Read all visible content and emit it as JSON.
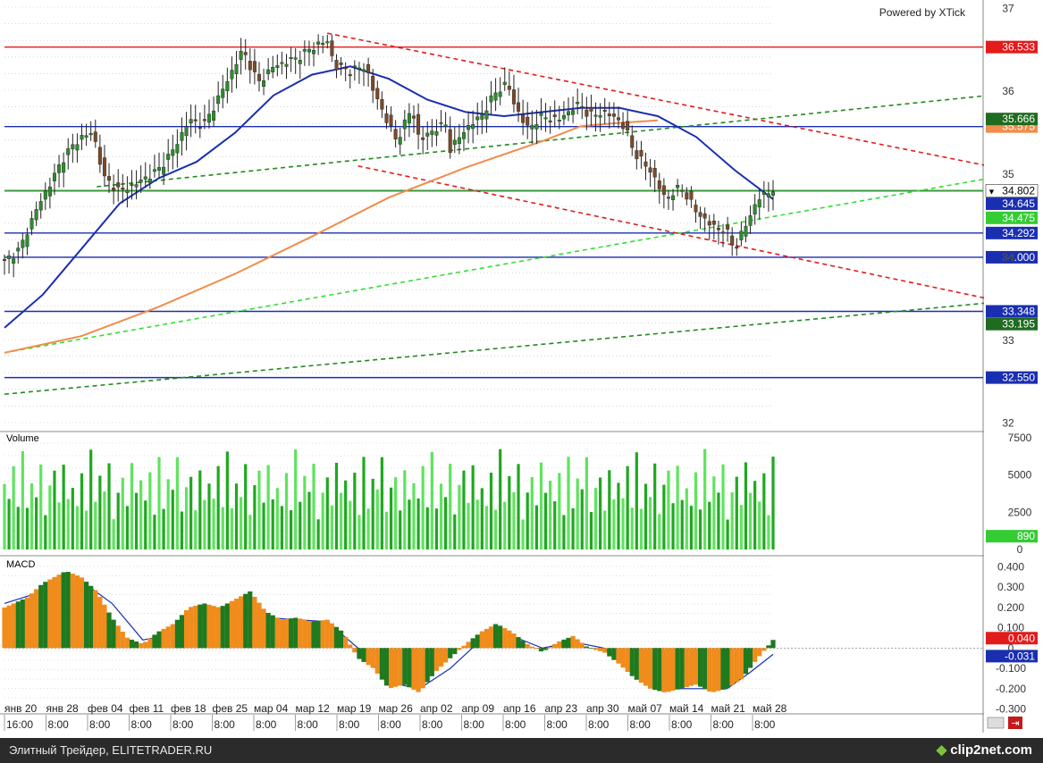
{
  "branding": {
    "powered_by": "Powered by XTick",
    "footer_left": "Элитный Трейдер, ELITETRADER.RU",
    "footer_right": "clip2net.com"
  },
  "chart_data": [
    {
      "type": "candlestick",
      "panel": "price",
      "title": "",
      "ylim": [
        31.9,
        37.1
      ],
      "y_ticks": [
        "37",
        "36",
        "35",
        "34",
        "33",
        "32"
      ],
      "x_date_labels": [
        "янв 20",
        "янв 28",
        "фев 04",
        "фев 11",
        "фев 18",
        "фев 25",
        "мар 04",
        "мар 12",
        "мар 19",
        "мар 26",
        "апр 02",
        "апр 09",
        "апр 16",
        "апр 23",
        "апр 30",
        "май 07",
        "май 14",
        "май 21",
        "май 28"
      ],
      "x_time_labels": [
        "16:00",
        "8:00",
        "8:00",
        "8:00",
        "8:00",
        "8:00",
        "8:00",
        "8:00",
        "8:00",
        "8:00",
        "8:00",
        "8:00",
        "8:00",
        "8:00",
        "8:00",
        "8:00",
        "8:00",
        "8:00",
        "8:00"
      ],
      "close_path": [
        [
          0,
          33.95
        ],
        [
          0.02,
          34.1
        ],
        [
          0.04,
          34.55
        ],
        [
          0.06,
          34.9
        ],
        [
          0.08,
          35.25
        ],
        [
          0.1,
          35.45
        ],
        [
          0.115,
          35.5
        ],
        [
          0.13,
          34.95
        ],
        [
          0.15,
          34.8
        ],
        [
          0.17,
          34.88
        ],
        [
          0.2,
          35.05
        ],
        [
          0.22,
          35.3
        ],
        [
          0.24,
          35.65
        ],
        [
          0.26,
          35.6
        ],
        [
          0.28,
          35.95
        ],
        [
          0.31,
          36.5
        ],
        [
          0.33,
          36.1
        ],
        [
          0.35,
          36.3
        ],
        [
          0.38,
          36.4
        ],
        [
          0.41,
          36.58
        ],
        [
          0.42,
          36.6
        ],
        [
          0.43,
          36.3
        ],
        [
          0.45,
          36.25
        ],
        [
          0.47,
          36.3
        ],
        [
          0.48,
          36.0
        ],
        [
          0.5,
          35.6
        ],
        [
          0.51,
          35.4
        ],
        [
          0.53,
          35.8
        ],
        [
          0.54,
          35.4
        ],
        [
          0.56,
          35.55
        ],
        [
          0.575,
          35.6
        ],
        [
          0.58,
          35.3
        ],
        [
          0.6,
          35.55
        ],
        [
          0.62,
          35.7
        ],
        [
          0.64,
          36.0
        ],
        [
          0.655,
          36.1
        ],
        [
          0.66,
          35.9
        ],
        [
          0.68,
          35.55
        ],
        [
          0.7,
          35.7
        ],
        [
          0.72,
          35.65
        ],
        [
          0.74,
          35.8
        ],
        [
          0.75,
          35.85
        ],
        [
          0.76,
          35.7
        ],
        [
          0.78,
          35.75
        ],
        [
          0.8,
          35.65
        ],
        [
          0.81,
          35.5
        ],
        [
          0.82,
          35.25
        ],
        [
          0.84,
          35.05
        ],
        [
          0.86,
          34.7
        ],
        [
          0.88,
          34.85
        ],
        [
          0.9,
          34.55
        ],
        [
          0.92,
          34.38
        ],
        [
          0.94,
          34.3
        ],
        [
          0.95,
          34.1
        ],
        [
          0.96,
          34.3
        ],
        [
          0.97,
          34.5
        ],
        [
          0.98,
          34.7
        ],
        [
          1.0,
          34.82
        ]
      ],
      "moving_averages": [
        {
          "color": "#1a2fb0",
          "path": [
            [
              0,
              33.15
            ],
            [
              0.05,
              33.55
            ],
            [
              0.1,
              34.1
            ],
            [
              0.15,
              34.65
            ],
            [
              0.2,
              34.95
            ],
            [
              0.25,
              35.15
            ],
            [
              0.3,
              35.5
            ],
            [
              0.35,
              35.95
            ],
            [
              0.4,
              36.2
            ],
            [
              0.45,
              36.3
            ],
            [
              0.5,
              36.15
            ],
            [
              0.55,
              35.9
            ],
            [
              0.6,
              35.75
            ],
            [
              0.65,
              35.7
            ],
            [
              0.7,
              35.75
            ],
            [
              0.75,
              35.8
            ],
            [
              0.8,
              35.8
            ],
            [
              0.85,
              35.7
            ],
            [
              0.9,
              35.45
            ],
            [
              0.95,
              35.05
            ],
            [
              1.0,
              34.7
            ]
          ]
        },
        {
          "color": "#f08c4c",
          "path": [
            [
              0,
              32.85
            ],
            [
              0.1,
              33.05
            ],
            [
              0.2,
              33.4
            ],
            [
              0.3,
              33.8
            ],
            [
              0.4,
              34.25
            ],
            [
              0.5,
              34.72
            ],
            [
              0.6,
              35.08
            ],
            [
              0.7,
              35.4
            ],
            [
              0.75,
              35.58
            ],
            [
              0.8,
              35.62
            ],
            [
              0.85,
              35.65
            ]
          ]
        }
      ],
      "h_levels": [
        {
          "value": 36.533,
          "color": "#e31b1b",
          "label": "36.533",
          "label_bg": "#e31b1b"
        },
        {
          "value": 35.575,
          "color": "#1a2fb0",
          "label": "35.575",
          "label_bg": "#f08c4c"
        },
        {
          "value": 34.802,
          "color": "#3c9a3c",
          "label": "34.802",
          "label_bg": "#ffffff"
        },
        {
          "value": 34.292,
          "color": "#1a2fb0",
          "label": "34.292",
          "label_bg": "#1a2fb0"
        },
        {
          "value": 34.0,
          "color": "#1a2fb0",
          "label": "34.000",
          "label_bg": "#1a2fb0"
        },
        {
          "value": 33.348,
          "color": "#1a2fb0",
          "label": "33.348",
          "label_bg": "#1a2fb0"
        },
        {
          "value": 32.55,
          "color": "#1a2fb0",
          "label": "32.550",
          "label_bg": "#1a2fb0"
        }
      ],
      "extra_axis_labels": [
        {
          "value": 35.666,
          "label": "35.666",
          "bg": "#1f6b1f"
        },
        {
          "value": 34.645,
          "label": "34.645",
          "bg": "#1a2fb0"
        },
        {
          "value": 34.475,
          "label": "34.475",
          "bg": "#33cc33"
        },
        {
          "value": 33.195,
          "label": "33.195",
          "bg": "#1f6b1f"
        }
      ],
      "trend_lines": [
        {
          "color": "#e31b1b",
          "p1": [
            0.42,
            36.7
          ],
          "p2": [
            1.28,
            35.1
          ]
        },
        {
          "color": "#e31b1b",
          "p1": [
            0.46,
            35.1
          ],
          "p2": [
            1.28,
            33.5
          ]
        },
        {
          "color": "#1f8b1f",
          "p1": [
            0.12,
            34.85
          ],
          "p2": [
            1.28,
            35.95
          ]
        },
        {
          "color": "#33dd33",
          "p1": [
            0.0,
            32.85
          ],
          "p2": [
            1.28,
            34.95
          ]
        },
        {
          "color": "#1f8b1f",
          "p1": [
            0.0,
            32.35
          ],
          "p2": [
            1.28,
            33.45
          ]
        }
      ]
    },
    {
      "type": "bar",
      "panel": "volume",
      "title": "Volume",
      "ylim": [
        0,
        7500
      ],
      "y_ticks": [
        "7500",
        "5000",
        "2500",
        "0"
      ],
      "current_label": "890",
      "bar_heights_pattern": [
        0.55,
        0.35,
        0.7,
        0.25,
        0.9,
        0.3,
        0.6,
        0.45,
        0.8,
        0.2,
        0.5,
        0.65,
        0.3,
        0.75,
        0.4
      ]
    },
    {
      "type": "bar",
      "panel": "macd",
      "title": "MACD",
      "ylim": [
        -0.32,
        0.42
      ],
      "y_ticks": [
        "0.400",
        "0.300",
        "0.200",
        "0.100",
        "0",
        "-0.100",
        "-0.200",
        "-0.300"
      ],
      "current_labels": [
        {
          "label": "0.040",
          "bg": "#e31b1b"
        },
        {
          "label": "-0.031",
          "bg": "#1a2fb0"
        }
      ],
      "histogram_path": [
        [
          0,
          0.2
        ],
        [
          0.03,
          0.25
        ],
        [
          0.05,
          0.32
        ],
        [
          0.08,
          0.38
        ],
        [
          0.1,
          0.35
        ],
        [
          0.12,
          0.28
        ],
        [
          0.14,
          0.15
        ],
        [
          0.16,
          0.05
        ],
        [
          0.18,
          0.02
        ],
        [
          0.2,
          0.08
        ],
        [
          0.22,
          0.12
        ],
        [
          0.24,
          0.2
        ],
        [
          0.26,
          0.22
        ],
        [
          0.28,
          0.2
        ],
        [
          0.3,
          0.24
        ],
        [
          0.32,
          0.28
        ],
        [
          0.34,
          0.18
        ],
        [
          0.36,
          0.14
        ],
        [
          0.38,
          0.15
        ],
        [
          0.4,
          0.13
        ],
        [
          0.42,
          0.14
        ],
        [
          0.44,
          0.08
        ],
        [
          0.46,
          -0.05
        ],
        [
          0.48,
          -0.1
        ],
        [
          0.5,
          -0.2
        ],
        [
          0.52,
          -0.18
        ],
        [
          0.54,
          -0.22
        ],
        [
          0.56,
          -0.12
        ],
        [
          0.58,
          -0.05
        ],
        [
          0.6,
          0.02
        ],
        [
          0.62,
          0.08
        ],
        [
          0.64,
          0.12
        ],
        [
          0.66,
          0.08
        ],
        [
          0.68,
          0.02
        ],
        [
          0.7,
          -0.02
        ],
        [
          0.72,
          0.03
        ],
        [
          0.74,
          0.06
        ],
        [
          0.76,
          0.0
        ],
        [
          0.78,
          -0.02
        ],
        [
          0.8,
          -0.08
        ],
        [
          0.82,
          -0.15
        ],
        [
          0.84,
          -0.2
        ],
        [
          0.86,
          -0.22
        ],
        [
          0.88,
          -0.2
        ],
        [
          0.9,
          -0.18
        ],
        [
          0.92,
          -0.22
        ],
        [
          0.94,
          -0.2
        ],
        [
          0.96,
          -0.15
        ],
        [
          0.98,
          -0.05
        ],
        [
          1.0,
          0.04
        ]
      ],
      "signal_path": [
        [
          0,
          0.22
        ],
        [
          0.05,
          0.28
        ],
        [
          0.1,
          0.33
        ],
        [
          0.14,
          0.22
        ],
        [
          0.18,
          0.04
        ],
        [
          0.22,
          0.07
        ],
        [
          0.26,
          0.18
        ],
        [
          0.3,
          0.2
        ],
        [
          0.34,
          0.15
        ],
        [
          0.38,
          0.14
        ],
        [
          0.42,
          0.13
        ],
        [
          0.46,
          0.0
        ],
        [
          0.5,
          -0.17
        ],
        [
          0.54,
          -0.2
        ],
        [
          0.58,
          -0.1
        ],
        [
          0.62,
          0.04
        ],
        [
          0.66,
          0.06
        ],
        [
          0.7,
          0.0
        ],
        [
          0.74,
          0.03
        ],
        [
          0.78,
          0.0
        ],
        [
          0.82,
          -0.12
        ],
        [
          0.86,
          -0.2
        ],
        [
          0.9,
          -0.2
        ],
        [
          0.94,
          -0.2
        ],
        [
          0.97,
          -0.12
        ],
        [
          1.0,
          -0.031
        ]
      ]
    }
  ]
}
